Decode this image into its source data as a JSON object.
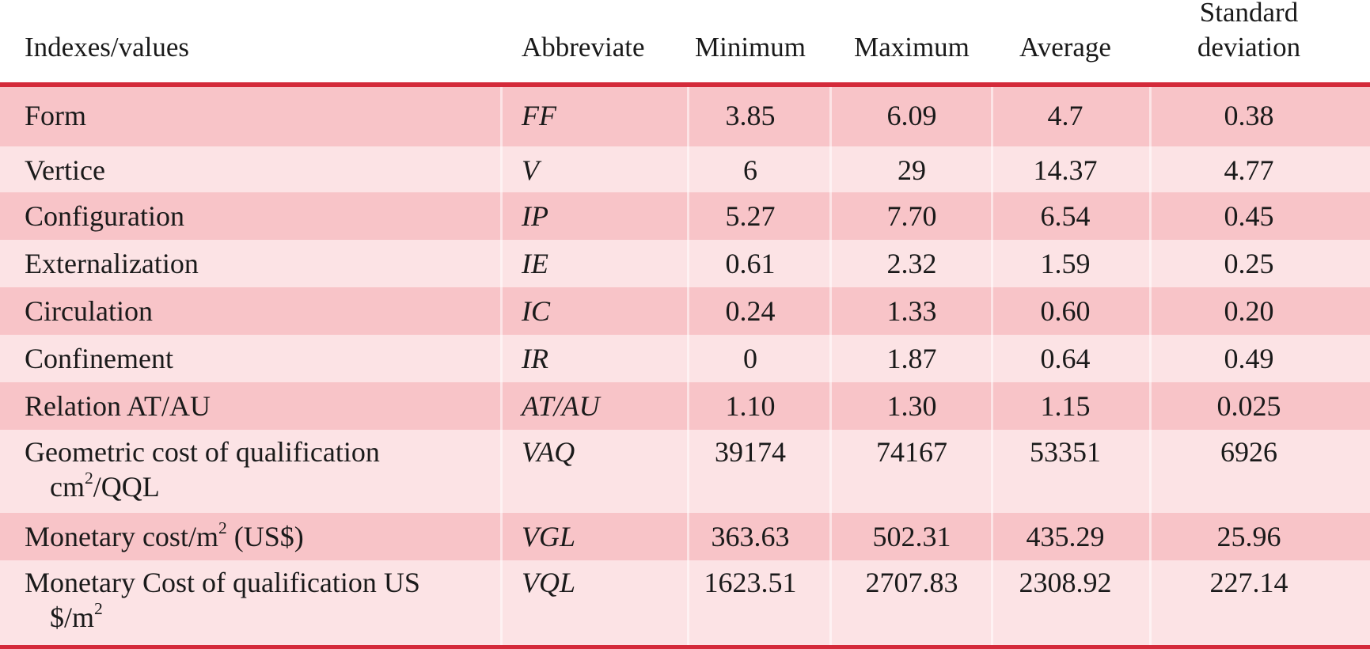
{
  "headers": {
    "label": "Indexes/values",
    "abbr": "Abbreviate",
    "min": "Minimum",
    "max": "Maximum",
    "avg": "Average",
    "std_line1": "Standard",
    "std_line2": "deviation"
  },
  "rows": [
    {
      "label": "Form",
      "abbr": "FF",
      "min": "3.85",
      "max": "6.09",
      "avg": "4.7",
      "std": "0.38"
    },
    {
      "label": "Vertice",
      "abbr": "V",
      "min": "6",
      "max": "29",
      "avg": "14.37",
      "std": "4.77"
    },
    {
      "label": "Configuration",
      "abbr": "IP",
      "min": "5.27",
      "max": "7.70",
      "avg": "6.54",
      "std": "0.45"
    },
    {
      "label": "Externalization",
      "abbr": "IE",
      "min": "0.61",
      "max": "2.32",
      "avg": "1.59",
      "std": "0.25"
    },
    {
      "label": "Circulation",
      "abbr": "IC",
      "min": "0.24",
      "max": "1.33",
      "avg": "0.60",
      "std": "0.20"
    },
    {
      "label": "Confinement",
      "abbr": "IR",
      "min": "0",
      "max": "1.87",
      "avg": "0.64",
      "std": "0.49"
    },
    {
      "label": "Relation AT/AU",
      "abbr": "AT/AU",
      "min": "1.10",
      "max": "1.30",
      "avg": "1.15",
      "std": "0.025"
    },
    {
      "label": "Geometric cost of qualification",
      "label_line2_pre": "cm",
      "label_line2_sup": "2",
      "label_line2_post": "/QQL",
      "abbr": "VAQ",
      "min": "39174",
      "max": "74167",
      "avg": "53351",
      "std": "6926"
    },
    {
      "label_pre": "Monetary cost/m",
      "label_sup": "2",
      "label_post": " (US$)",
      "abbr": "VGL",
      "min": "363.63",
      "max": "502.31",
      "avg": "435.29",
      "std": "25.96"
    },
    {
      "label": "Monetary Cost of qualification US",
      "label_line2_pre": "$/m",
      "label_line2_sup": "2",
      "label_line2_post": "",
      "abbr": "VQL",
      "min": "1623.51",
      "max": "2707.83",
      "avg": "2308.92",
      "std": "227.14"
    }
  ]
}
